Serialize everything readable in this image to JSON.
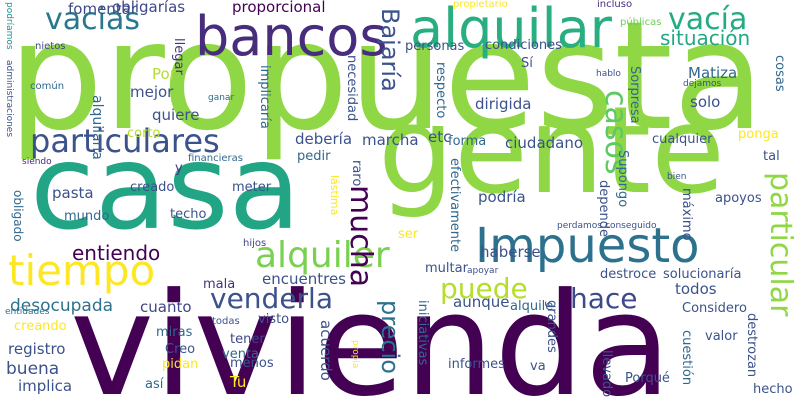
{
  "words": [
    {
      "t": "propuesta",
      "c": "#8fd744"
    },
    {
      "t": "vivienda",
      "c": "#440154"
    },
    {
      "t": "gente",
      "c": "#8fd744"
    },
    {
      "t": "casa",
      "c": "#21a585"
    },
    {
      "t": "Impuesto",
      "c": "#2c718e"
    },
    {
      "t": "alquilar",
      "c": "#29af7f"
    },
    {
      "t": "bancos",
      "c": "#472d7b"
    },
    {
      "t": "tiempo",
      "c": "#fde725"
    },
    {
      "t": "particulares",
      "c": "#3b528b"
    },
    {
      "t": "alquiler",
      "c": "#7ad151"
    },
    {
      "t": "vacias",
      "c": "#2a788e"
    },
    {
      "t": "vacía",
      "c": "#25ab82"
    },
    {
      "t": "casos",
      "c": "#5ec962"
    },
    {
      "t": "puede",
      "c": "#b5de2b"
    },
    {
      "t": "hace",
      "c": "#3e4989"
    },
    {
      "t": "venderla",
      "c": "#3b528b"
    },
    {
      "t": "mucha",
      "c": "#440154"
    },
    {
      "t": "particular",
      "c": "#8fd744"
    },
    {
      "t": "precio",
      "c": "#2c728e"
    },
    {
      "t": "Bajaría",
      "c": "#3b528b"
    },
    {
      "t": "situación",
      "c": "#22a884"
    },
    {
      "t": "fomentar",
      "c": "#3e4989"
    },
    {
      "t": "obligarías",
      "c": "#3e4989"
    },
    {
      "t": "proporcional",
      "c": "#440154"
    },
    {
      "t": "propietario",
      "c": "#fde725"
    },
    {
      "t": "incluso",
      "c": "#472d7b"
    },
    {
      "t": "públicas",
      "c": "#6ece58"
    },
    {
      "t": "podríamos",
      "c": "#21918c"
    },
    {
      "t": "nietos",
      "c": "#414487"
    },
    {
      "t": "común",
      "c": "#31688e"
    },
    {
      "t": "administraciones",
      "c": "#3b528b"
    },
    {
      "t": "entidades",
      "c": "#2c728e"
    },
    {
      "t": "siendo",
      "c": "#482878"
    },
    {
      "t": "obligado",
      "c": "#31688e"
    },
    {
      "t": "alquilarla",
      "c": "#31688e"
    },
    {
      "t": "llegar",
      "c": "#46337e"
    },
    {
      "t": "Por",
      "c": "#b5de2b"
    },
    {
      "t": "mejor",
      "c": "#3b528b"
    },
    {
      "t": "quiere",
      "c": "#3b528b"
    },
    {
      "t": "corto",
      "c": "#b5de2b"
    },
    {
      "t": "financieras",
      "c": "#31688e"
    },
    {
      "t": "y",
      "c": "#453781"
    },
    {
      "t": "pasta",
      "c": "#3b528b"
    },
    {
      "t": "creado",
      "c": "#3b528b"
    },
    {
      "t": "meter",
      "c": "#3b528b"
    },
    {
      "t": "mundo",
      "c": "#31688e"
    },
    {
      "t": "techo",
      "c": "#3b528b"
    },
    {
      "t": "hijos",
      "c": "#414487"
    },
    {
      "t": "entiendo",
      "c": "#440154"
    },
    {
      "t": "desocupada",
      "c": "#2c728e"
    },
    {
      "t": "cuanto",
      "c": "#414487"
    },
    {
      "t": "mala",
      "c": "#46337e"
    },
    {
      "t": "encuentres",
      "c": "#3b528b"
    },
    {
      "t": "creando",
      "c": "#fde725"
    },
    {
      "t": "registro",
      "c": "#3b528b"
    },
    {
      "t": "buena",
      "c": "#3b528b"
    },
    {
      "t": "implica",
      "c": "#3b528b"
    },
    {
      "t": "miras",
      "c": "#31688e"
    },
    {
      "t": "todas",
      "c": "#3b528b"
    },
    {
      "t": "Creo",
      "c": "#3b528b"
    },
    {
      "t": "pidan",
      "c": "#fde725"
    },
    {
      "t": "así",
      "c": "#31688e"
    },
    {
      "t": "Tu",
      "c": "#fde725"
    },
    {
      "t": "visto",
      "c": "#3b528b"
    },
    {
      "t": "tener",
      "c": "#414487"
    },
    {
      "t": "venta",
      "c": "#31688e"
    },
    {
      "t": "menos",
      "c": "#3b528b"
    },
    {
      "t": "implicaría",
      "c": "#31688e"
    },
    {
      "t": "necesidad",
      "c": "#3b528b"
    },
    {
      "t": "debería",
      "c": "#3b528b"
    },
    {
      "t": "marcha",
      "c": "#3b528b"
    },
    {
      "t": "pedir",
      "c": "#31688e"
    },
    {
      "t": "raro",
      "c": "#3b528b"
    },
    {
      "t": "lástima",
      "c": "#fde725"
    },
    {
      "t": "ser",
      "c": "#fde725"
    },
    {
      "t": "acuerdo",
      "c": "#3b528b"
    },
    {
      "t": "propia",
      "c": "#fde725"
    },
    {
      "t": "ganar",
      "c": "#31688e"
    },
    {
      "t": "personas",
      "c": "#3b528b"
    },
    {
      "t": "condiciones",
      "c": "#3b528b"
    },
    {
      "t": "Sí",
      "c": "#3b528b"
    },
    {
      "t": "respecto",
      "c": "#31688e"
    },
    {
      "t": "dirigida",
      "c": "#3b528b"
    },
    {
      "t": "ciudadano",
      "c": "#3b528b"
    },
    {
      "t": "etc",
      "c": "#3b528b"
    },
    {
      "t": "forma",
      "c": "#31688e"
    },
    {
      "t": "efectivamente",
      "c": "#31688e"
    },
    {
      "t": "podría",
      "c": "#3b528b"
    },
    {
      "t": "haberse",
      "c": "#3b528b"
    },
    {
      "t": "multar",
      "c": "#3b528b"
    },
    {
      "t": "iniciativas",
      "c": "#31688e"
    },
    {
      "t": "aunque",
      "c": "#3b528b"
    },
    {
      "t": "apoyar",
      "c": "#3b528b"
    },
    {
      "t": "alquile",
      "c": "#31688e"
    },
    {
      "t": "grandes",
      "c": "#3b528b"
    },
    {
      "t": "informes",
      "c": "#3b528b"
    },
    {
      "t": "va",
      "c": "#3b528b"
    },
    {
      "t": "depende",
      "c": "#3b528b"
    },
    {
      "t": "Supongo",
      "c": "#31688e"
    },
    {
      "t": "perdamos",
      "c": "#3b528b"
    },
    {
      "t": "conseguido",
      "c": "#3b528b"
    },
    {
      "t": "destroce",
      "c": "#3b528b"
    },
    {
      "t": "Considero",
      "c": "#3b528b"
    },
    {
      "t": "llevado",
      "c": "#3b528b"
    },
    {
      "t": "Porqué",
      "c": "#3b528b"
    },
    {
      "t": "cuestión",
      "c": "#31688e"
    },
    {
      "t": "valor",
      "c": "#3b528b"
    },
    {
      "t": "destrozan",
      "c": "#3b528b"
    },
    {
      "t": "solucionaría",
      "c": "#3b528b"
    },
    {
      "t": "apoyos",
      "c": "#3b528b"
    },
    {
      "t": "máximo",
      "c": "#3b528b"
    },
    {
      "t": "bien",
      "c": "#3b528b"
    },
    {
      "t": "cualquier",
      "c": "#3b528b"
    },
    {
      "t": "ponga",
      "c": "#fde725"
    },
    {
      "t": "tal",
      "c": "#3b528b"
    },
    {
      "t": "Matiza",
      "c": "#31688e"
    },
    {
      "t": "solo",
      "c": "#3b528b"
    },
    {
      "t": "hablo",
      "c": "#3b528b"
    },
    {
      "t": "dejamos",
      "c": "#3b528b"
    },
    {
      "t": "cosas",
      "c": "#31688e"
    },
    {
      "t": "Sorpresa",
      "c": "#31688e"
    },
    {
      "t": "todos",
      "c": "#3b528b"
    },
    {
      "t": "hecho",
      "c": "#3b528b"
    }
  ]
}
